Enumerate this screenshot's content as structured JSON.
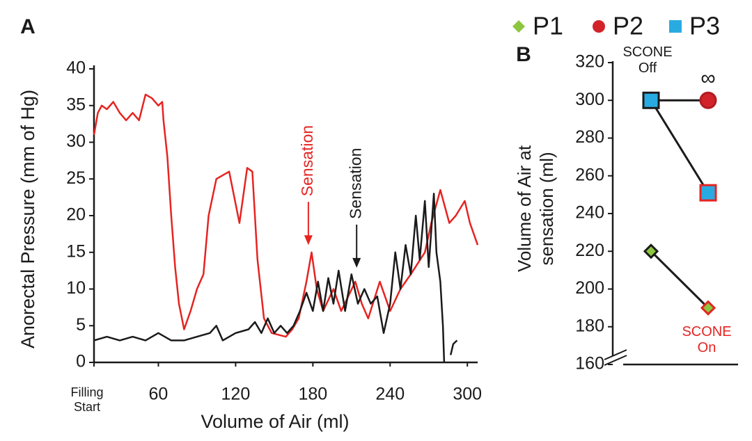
{
  "chart_data": [
    {
      "type": "line",
      "panel_label": "A",
      "x_label": "Volume of Air (ml)",
      "y_label": "Anorectal Pressure (mm of Hg)",
      "xlim": [
        10,
        308
      ],
      "ylim": [
        0,
        40
      ],
      "xticks": [
        {
          "value": 10,
          "label": "Filling Start"
        },
        60,
        120,
        180,
        240,
        300
      ],
      "yticks": [
        0,
        5,
        10,
        15,
        20,
        25,
        30,
        35,
        40
      ],
      "series": [
        {
          "color": "#e52421",
          "x": [
            10,
            13,
            16,
            20,
            25,
            30,
            35,
            40,
            45,
            50,
            55,
            60,
            63,
            64,
            67,
            70,
            73,
            76,
            80,
            85,
            90,
            95,
            99,
            105,
            115,
            123,
            129,
            133,
            137,
            142,
            148,
            159,
            164,
            169,
            175,
            179,
            183,
            188,
            196,
            202,
            213,
            218,
            223,
            232,
            240,
            248,
            256,
            267,
            272,
            279,
            286,
            291,
            298,
            302,
            308
          ],
          "values": [
            31,
            34,
            35,
            34.5,
            35.5,
            34,
            33,
            34,
            33,
            36.5,
            36,
            35,
            35.5,
            33,
            28,
            20,
            13,
            8,
            4.5,
            7,
            10,
            12,
            20,
            25,
            26,
            19,
            26.5,
            26,
            14,
            6,
            4,
            3.5,
            4.5,
            6,
            11,
            15,
            10,
            7,
            10,
            7,
            11,
            8,
            6,
            11,
            7,
            10,
            12,
            15,
            19,
            23.5,
            19,
            20,
            22,
            19,
            16
          ]
        },
        {
          "color": "#1a1a1a",
          "x": [
            10,
            20,
            30,
            40,
            50,
            60,
            70,
            80,
            90,
            100,
            105,
            110,
            120,
            130,
            135,
            140,
            145,
            150,
            155,
            160,
            165,
            170,
            175,
            180,
            184,
            188,
            192,
            196,
            200,
            205,
            210,
            215,
            220,
            225,
            230,
            235,
            240,
            244,
            248,
            252,
            256,
            260,
            263,
            267,
            270,
            274,
            276,
            279,
            281,
            282,
            284,
            287,
            289,
            292
          ],
          "values": [
            3,
            3.5,
            3,
            3.5,
            3,
            4,
            3,
            3,
            3.5,
            4,
            5,
            3,
            4,
            4.5,
            5.5,
            4,
            6,
            4,
            5,
            4,
            5,
            7,
            9.5,
            7,
            11,
            7,
            11.5,
            8,
            12.5,
            7,
            12,
            8,
            10,
            8,
            9,
            4,
            8,
            15,
            10,
            16,
            12,
            20,
            14,
            22,
            13,
            23,
            15,
            11,
            5,
            0,
            null,
            1,
            2.5,
            3
          ]
        }
      ],
      "annotations": [
        {
          "text": "Sensation",
          "x": 176.5,
          "y": 16,
          "color": "#e52421"
        },
        {
          "text": "Sensation",
          "x": 214,
          "y": 12.9,
          "color": "#1a1a1a"
        }
      ]
    },
    {
      "type": "line",
      "panel_label": "B",
      "y_label": [
        "Volume of Air at",
        "sensation (ml)"
      ],
      "categories": [
        "SCONE Off",
        "SCONE On"
      ],
      "ylim": [
        160,
        320
      ],
      "yticks": [
        160,
        180,
        200,
        220,
        240,
        260,
        280,
        300,
        320
      ],
      "series": [
        {
          "name": "P1",
          "marker": "diamond",
          "color": "#8dc63f",
          "edge_colors": [
            "#1a1a1a",
            "#e52421"
          ],
          "values": [
            220,
            190
          ]
        },
        {
          "name": "P2",
          "marker": "circle",
          "color": "#d2232a",
          "edge_colors": [
            "#b01c22",
            "#b01c22"
          ],
          "values": [
            300,
            300
          ]
        },
        {
          "name": "P3",
          "marker": "square",
          "color": "#29abe2",
          "edge_colors": [
            "#1a1a1a",
            "#e52421"
          ],
          "values": [
            300,
            251
          ]
        }
      ],
      "annotations": [
        {
          "text": "∞",
          "series": 1,
          "point": 1
        }
      ]
    }
  ]
}
